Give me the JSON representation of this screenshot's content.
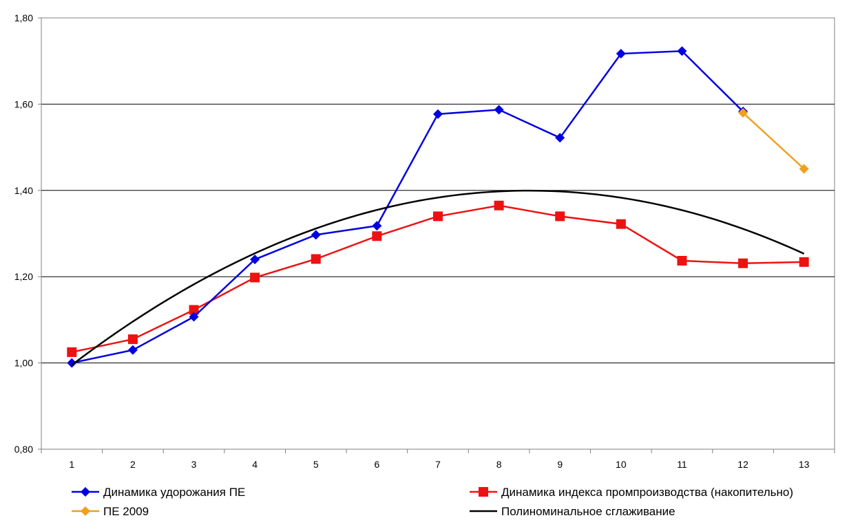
{
  "chart_data": {
    "type": "line",
    "x": [
      1,
      2,
      3,
      4,
      5,
      6,
      7,
      8,
      9,
      10,
      11,
      12,
      13
    ],
    "ylim": [
      0.8,
      1.8
    ],
    "y_ticks": [
      "0,80",
      "1,00",
      "1,20",
      "1,40",
      "1,60",
      "1,80"
    ],
    "y_tick_values": [
      0.8,
      1.0,
      1.2,
      1.4,
      1.6,
      1.8
    ],
    "x_tick_labels": [
      "1",
      "2",
      "3",
      "4",
      "5",
      "6",
      "7",
      "8",
      "9",
      "10",
      "11",
      "12",
      "13"
    ],
    "grid": "horizontal",
    "legend_position": "bottom",
    "series": [
      {
        "name": "Динамика удорожания ПЕ",
        "color": "#0000e0",
        "marker": "diamond",
        "x": [
          1,
          2,
          3,
          4,
          5,
          6,
          7,
          8,
          9,
          10,
          11,
          12
        ],
        "values": [
          1.0,
          1.03,
          1.107,
          1.24,
          1.297,
          1.318,
          1.577,
          1.587,
          1.522,
          1.717,
          1.723,
          1.583
        ]
      },
      {
        "name": "Динамика индекса промпроизводства (накопительно)",
        "color": "#ee1111",
        "marker": "square",
        "x": [
          1,
          2,
          3,
          4,
          5,
          6,
          7,
          8,
          9,
          10,
          11,
          12,
          13
        ],
        "values": [
          1.025,
          1.055,
          1.123,
          1.198,
          1.241,
          1.294,
          1.34,
          1.365,
          1.34,
          1.322,
          1.237,
          1.231,
          1.234
        ]
      },
      {
        "name": "ПЕ 2009",
        "color": "#f0a020",
        "marker": "diamond",
        "x": [
          12,
          13
        ],
        "values": [
          1.58,
          1.45
        ]
      },
      {
        "name": "Полиноминальное сглаживание",
        "color": "#000000",
        "marker": "none",
        "type": "smooth",
        "poly": [
          -0.0072,
          0.1223,
          0.8801
        ],
        "x_range": [
          1,
          13
        ]
      }
    ]
  }
}
